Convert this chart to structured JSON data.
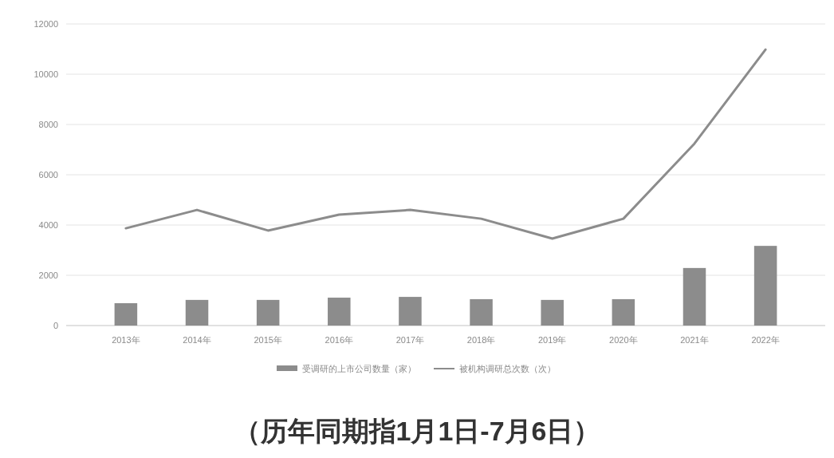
{
  "chart_data": {
    "type": "bar",
    "categories": [
      "2013年",
      "2014年",
      "2015年",
      "2016年",
      "2017年",
      "2018年",
      "2019年",
      "2020年",
      "2021年",
      "2022年"
    ],
    "series": [
      {
        "name": "受调研的上市公司数量（家）",
        "color": "#8c8c8c",
        "values": [
          890,
          1020,
          1020,
          1110,
          1140,
          1050,
          1020,
          1050,
          2290,
          3170
        ]
      },
      {
        "name": "被机构调研总次数（次）",
        "type": "line",
        "color": "#8c8c8c",
        "values": [
          3870,
          4600,
          3780,
          4410,
          4600,
          4250,
          3460,
          4250,
          7240,
          10980
        ]
      }
    ],
    "ylim": [
      0,
      12000
    ],
    "yticks": [
      0,
      2000,
      4000,
      6000,
      8000,
      10000,
      12000
    ],
    "grid": "y",
    "legend": "bottom",
    "annotations": [
      "（历年同期指1月1日-7月6日）"
    ]
  }
}
